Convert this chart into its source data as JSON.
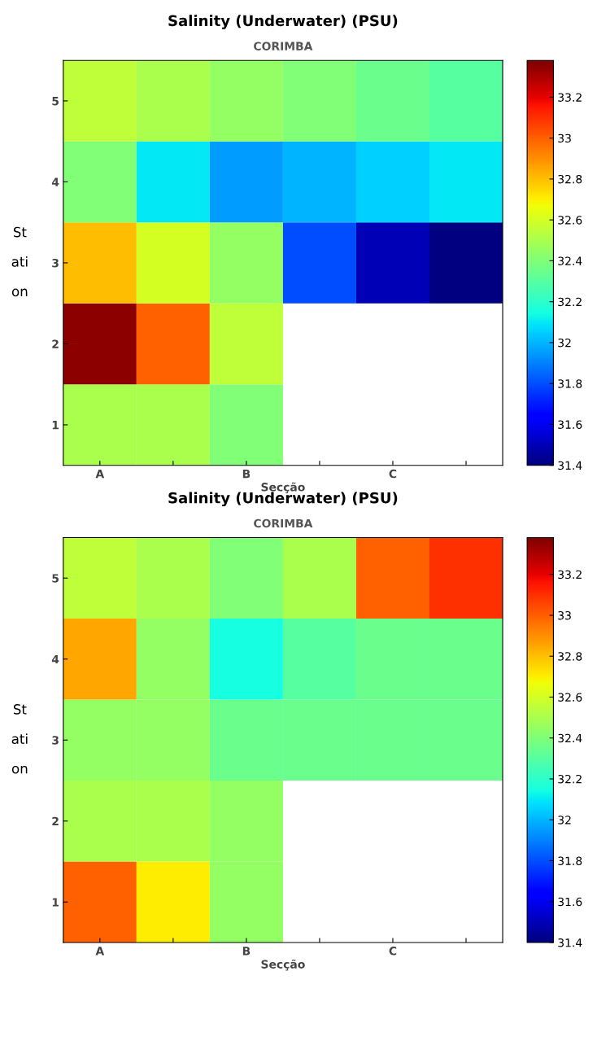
{
  "chart_data": [
    {
      "type": "heatmap",
      "title": "Salinity (Underwater) (PSU)",
      "subtitle": "CORIMBA",
      "xlabel": "Secção",
      "ylabel": "St\nati\non",
      "categories": [
        "A",
        null,
        "B",
        null,
        "C",
        null
      ],
      "y_categories": [
        "5",
        "4",
        "3",
        "2",
        "1"
      ],
      "cells": [
        [
          32.55,
          32.5,
          32.45,
          32.4,
          32.35,
          32.3
        ],
        [
          32.4,
          32.1,
          31.95,
          32.0,
          32.05,
          32.1
        ],
        [
          32.8,
          32.6,
          32.45,
          31.8,
          31.5,
          31.4
        ],
        [
          33.35,
          33.0,
          32.55,
          null,
          null,
          null
        ],
        [
          32.5,
          32.5,
          32.4,
          null,
          null,
          null
        ]
      ],
      "clim": [
        31.4,
        33.38
      ],
      "cticks": [
        31.4,
        31.6,
        31.8,
        32,
        32.2,
        32.4,
        32.6,
        32.8,
        33,
        33.2
      ]
    },
    {
      "type": "heatmap",
      "title": "Salinity (Underwater) (PSU)",
      "subtitle": "CORIMBA",
      "xlabel": "Secção",
      "ylabel": "St\nati\non",
      "categories": [
        "A",
        null,
        "B",
        null,
        "C",
        null
      ],
      "y_categories": [
        "5",
        "4",
        "3",
        "2",
        "1"
      ],
      "cells": [
        [
          32.55,
          32.5,
          32.4,
          32.5,
          33.0,
          33.1
        ],
        [
          32.85,
          32.45,
          32.15,
          32.3,
          32.35,
          32.35
        ],
        [
          32.45,
          32.45,
          32.35,
          32.35,
          32.35,
          32.35
        ],
        [
          32.5,
          32.5,
          32.45,
          null,
          null,
          null
        ],
        [
          33.0,
          32.7,
          32.45,
          null,
          null,
          null
        ]
      ],
      "clim": [
        31.4,
        33.38
      ],
      "cticks": [
        31.4,
        31.6,
        31.8,
        32,
        32.2,
        32.4,
        32.6,
        32.8,
        33,
        33.2
      ]
    }
  ]
}
